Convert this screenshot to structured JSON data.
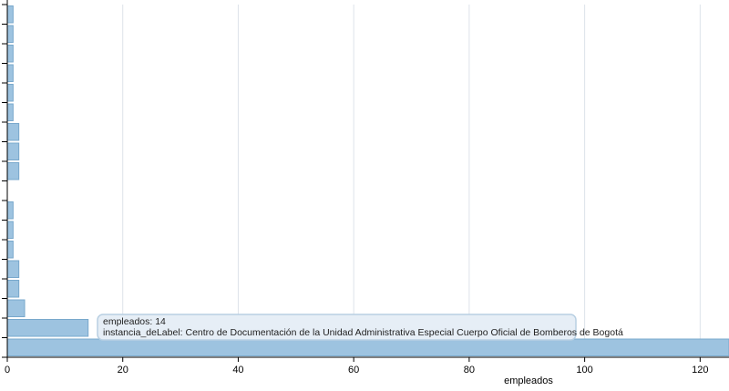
{
  "chart_data": {
    "type": "bar",
    "orientation": "horizontal",
    "x_label": "empleados",
    "categories": [
      null,
      null,
      null,
      null,
      null,
      null,
      null,
      null,
      null,
      null,
      null,
      null,
      null,
      null,
      null,
      null,
      null,
      null
    ],
    "values": [
      1,
      1,
      1,
      1,
      1,
      1,
      2,
      2,
      2,
      0,
      1,
      1,
      1,
      2,
      2,
      3,
      14,
      125
    ],
    "color": "#9dc3e0",
    "edge_color": "#78a8cc",
    "xlim": [
      0,
      125
    ],
    "xticks": [
      0,
      20,
      40,
      60,
      80,
      100,
      120
    ],
    "grid": true,
    "tooltip": [
      "empleados: 14",
      "instancia_deLabel: Centro de Documentación de la Unidad Administrativa Especial Cuerpo Oficial de Bomberos de Bogotá"
    ]
  }
}
